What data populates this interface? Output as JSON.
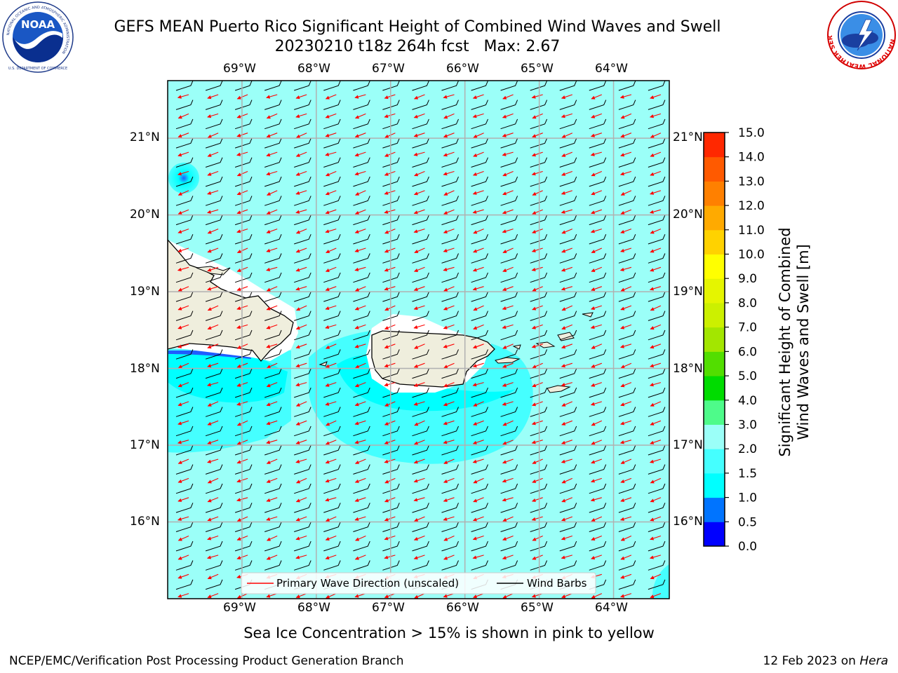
{
  "title": {
    "line1": "GEFS MEAN Puerto Rico Significant Height of Combined Wind Waves and Swell",
    "line2": "20230210 t18z 264h fcst   Max: 2.67"
  },
  "logos": {
    "left": {
      "icon": "noaa-logo",
      "text": "NOAA"
    },
    "right": {
      "icon": "nws-logo",
      "ring_text": "NATIONAL WEATHER SERVICE"
    },
    "noaa_ring_text": "NATIONAL OCEANIC AND ATMOSPHERIC ADMINISTRATION",
    "noaa_bottom_text": "U.S. DEPARTMENT OF COMMERCE"
  },
  "map": {
    "lon_labels": [
      "69°W",
      "68°W",
      "67°W",
      "66°W",
      "65°W",
      "64°W"
    ],
    "lat_labels": [
      "21°N",
      "20°N",
      "19°N",
      "18°N",
      "17°N",
      "16°N"
    ],
    "lon_range": [
      -70.0,
      -63.25
    ],
    "lat_range": [
      15.0,
      21.75
    ],
    "legend": [
      {
        "label": "Primary Wave Direction (unscaled)",
        "color": "#ff0000"
      },
      {
        "label": "Wind Barbs",
        "color": "#000000"
      }
    ],
    "colors": {
      "land": "#efeedd",
      "ocean_1_5_2": "#45ffff",
      "ocean_2_3": "#9bfff8",
      "ocean_1_1_5": "#00ffff"
    }
  },
  "colorbar": {
    "label_line1": "Significant Height of Combined",
    "label_line2": "Wind Waves and Swell [m]",
    "ticks": [
      "0.0",
      "0.5",
      "1.0",
      "1.5",
      "2.0",
      "3.0",
      "4.0",
      "5.0",
      "6.0",
      "7.0",
      "8.0",
      "9.0",
      "10.0",
      "11.0",
      "12.0",
      "13.0",
      "14.0",
      "15.0"
    ],
    "colors": [
      "#0000ff",
      "#0074ff",
      "#00ffff",
      "#45ffff",
      "#9bfff8",
      "#4efb8a",
      "#00dc00",
      "#52de00",
      "#a3e600",
      "#ccf000",
      "#e5f500",
      "#ffff00",
      "#ffd200",
      "#ffaa00",
      "#ff8000",
      "#ff5a00",
      "#ff2800"
    ]
  },
  "subtitle": "Sea Ice Concentration > 15% is shown in pink to yellow",
  "footer": {
    "left": "NCEP/EMC/Verification Post Processing Product Generation Branch",
    "right_prefix": "12 Feb 2023 on ",
    "right_host": "Hera"
  }
}
